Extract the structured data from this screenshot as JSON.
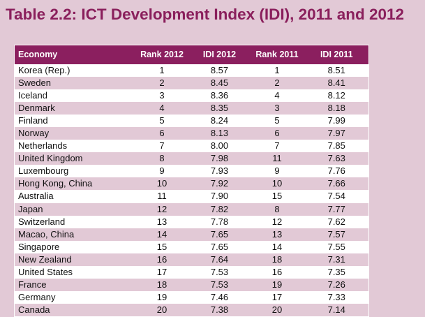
{
  "title": "Table 2.2: ICT Development Index (IDI), 2011 and 2012",
  "columns": {
    "economy": "Economy",
    "rank2012": "Rank 2012",
    "idi2012": "IDI 2012",
    "rank2011": "Rank 2011",
    "idi2011": "IDI 2011"
  },
  "rows": [
    {
      "economy": "Korea (Rep.)",
      "rank2012": "1",
      "idi2012": "8.57",
      "rank2011": "1",
      "idi2011": "8.51"
    },
    {
      "economy": "Sweden",
      "rank2012": "2",
      "idi2012": "8.45",
      "rank2011": "2",
      "idi2011": "8.41"
    },
    {
      "economy": "Iceland",
      "rank2012": "3",
      "idi2012": "8.36",
      "rank2011": "4",
      "idi2011": "8.12"
    },
    {
      "economy": "Denmark",
      "rank2012": "4",
      "idi2012": "8.35",
      "rank2011": "3",
      "idi2011": "8.18"
    },
    {
      "economy": "Finland",
      "rank2012": "5",
      "idi2012": "8.24",
      "rank2011": "5",
      "idi2011": "7.99"
    },
    {
      "economy": "Norway",
      "rank2012": "6",
      "idi2012": "8.13",
      "rank2011": "6",
      "idi2011": "7.97"
    },
    {
      "economy": "Netherlands",
      "rank2012": "7",
      "idi2012": "8.00",
      "rank2011": "7",
      "idi2011": "7.85"
    },
    {
      "economy": "United Kingdom",
      "rank2012": "8",
      "idi2012": "7.98",
      "rank2011": "11",
      "idi2011": "7.63"
    },
    {
      "economy": "Luxembourg",
      "rank2012": "9",
      "idi2012": "7.93",
      "rank2011": "9",
      "idi2011": "7.76"
    },
    {
      "economy": "Hong Kong, China",
      "rank2012": "10",
      "idi2012": "7.92",
      "rank2011": "10",
      "idi2011": "7.66"
    },
    {
      "economy": "Australia",
      "rank2012": "11",
      "idi2012": "7.90",
      "rank2011": "15",
      "idi2011": "7.54"
    },
    {
      "economy": "Japan",
      "rank2012": "12",
      "idi2012": "7.82",
      "rank2011": "8",
      "idi2011": "7.77"
    },
    {
      "economy": "Switzerland",
      "rank2012": "13",
      "idi2012": "7.78",
      "rank2011": "12",
      "idi2011": "7.62"
    },
    {
      "economy": "Macao, China",
      "rank2012": "14",
      "idi2012": "7.65",
      "rank2011": "13",
      "idi2011": "7.57"
    },
    {
      "economy": "Singapore",
      "rank2012": "15",
      "idi2012": "7.65",
      "rank2011": "14",
      "idi2011": "7.55"
    },
    {
      "economy": "New Zealand",
      "rank2012": "16",
      "idi2012": "7.64",
      "rank2011": "18",
      "idi2011": "7.31"
    },
    {
      "economy": "United States",
      "rank2012": "17",
      "idi2012": "7.53",
      "rank2011": "16",
      "idi2011": "7.35"
    },
    {
      "economy": "France",
      "rank2012": "18",
      "idi2012": "7.53",
      "rank2011": "19",
      "idi2011": "7.26"
    },
    {
      "economy": "Germany",
      "rank2012": "19",
      "idi2012": "7.46",
      "rank2011": "17",
      "idi2011": "7.33"
    },
    {
      "economy": "Canada",
      "rank2012": "20",
      "idi2012": "7.38",
      "rank2011": "20",
      "idi2011": "7.14"
    }
  ]
}
